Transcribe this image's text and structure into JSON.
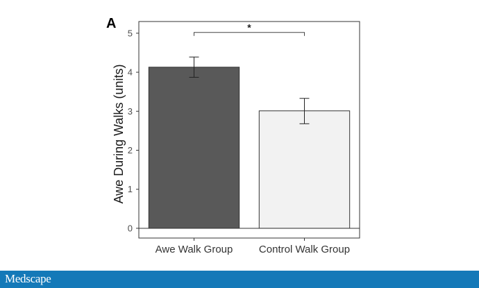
{
  "chart_data": {
    "type": "bar",
    "panel_label": "A",
    "title": "",
    "xlabel": "",
    "ylabel": "Awe During Walks (units)",
    "categories": [
      "Awe Walk Group",
      "Control Walk Group"
    ],
    "values": [
      4.13,
      3.01
    ],
    "error_low": [
      3.87,
      2.68
    ],
    "error_high": [
      4.39,
      3.33
    ],
    "ylim": [
      -0.25,
      5.3
    ],
    "yticks": [
      0,
      1,
      2,
      3,
      4,
      5
    ],
    "bar_colors": [
      "#595959",
      "#f2f2f2"
    ],
    "grid": false,
    "hline_at": 0,
    "significance": {
      "between": [
        0,
        1
      ],
      "label": "*",
      "y": 5.02
    }
  },
  "footer": {
    "brand": "Medscape",
    "background": "#1479b8"
  }
}
